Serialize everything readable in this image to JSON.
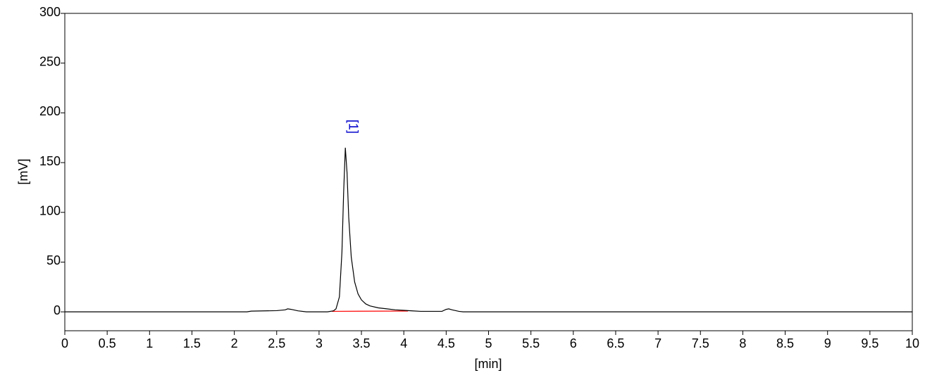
{
  "chart_data": {
    "type": "line",
    "xlabel": "[min]",
    "ylabel": "[mV]",
    "xlim": [
      0,
      10
    ],
    "xticks": [
      0,
      0.5,
      1,
      1.5,
      2,
      2.5,
      3,
      3.5,
      4,
      4.5,
      5,
      5.5,
      6,
      6.5,
      7,
      7.5,
      8,
      8.5,
      9,
      9.5,
      10
    ],
    "ylim": [
      -19,
      300
    ],
    "yticks": [
      0,
      50,
      100,
      150,
      200,
      250,
      300
    ],
    "trace": {
      "color": "#000000",
      "x": [
        0,
        2.15,
        2.2,
        2.5,
        2.6,
        2.63,
        2.67,
        2.75,
        2.85,
        3.0,
        3.1,
        3.17,
        3.2,
        3.24,
        3.27,
        3.29,
        3.31,
        3.33,
        3.35,
        3.38,
        3.42,
        3.46,
        3.5,
        3.55,
        3.6,
        3.7,
        3.8,
        3.9,
        4.0,
        4.1,
        4.2,
        4.45,
        4.5,
        4.53,
        4.57,
        4.65,
        4.7,
        10
      ],
      "values": [
        0,
        0,
        0.7,
        1.2,
        2,
        3,
        2.5,
        1,
        0,
        0,
        0,
        1,
        3,
        15,
        60,
        120,
        165,
        140,
        95,
        55,
        30,
        18,
        12,
        8,
        6,
        4,
        3,
        2,
        1.5,
        1,
        0.5,
        0.5,
        2.5,
        3,
        2,
        0.5,
        0,
        0
      ]
    },
    "baseline": {
      "color": "#ff0000",
      "x": [
        3.15,
        4.05
      ],
      "values": [
        0.5,
        0.8
      ]
    },
    "peaks": [
      {
        "label": "[1]",
        "x": 3.31,
        "y": 165,
        "color": "#0000cc"
      }
    ]
  }
}
